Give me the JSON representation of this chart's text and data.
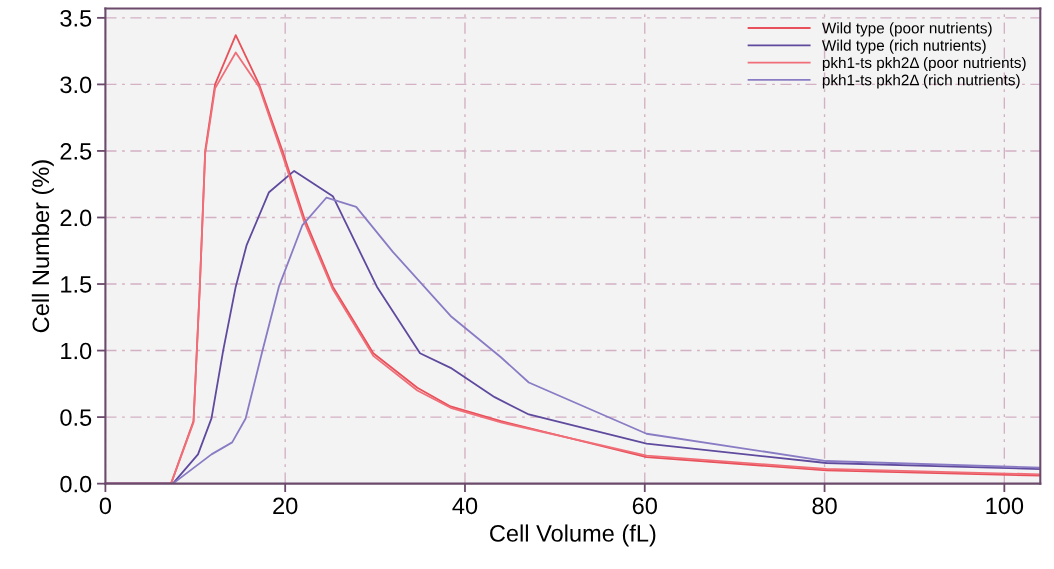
{
  "chart_data": {
    "type": "line",
    "xlabel": "Cell Volume (fL)",
    "ylabel": "Cell Number (%)",
    "xlim": [
      0,
      104
    ],
    "ylim": [
      0,
      3.57
    ],
    "xticks": [
      0,
      20,
      40,
      60,
      80,
      100
    ],
    "yticks": [
      {
        "value": 0,
        "label": "0.0"
      },
      0.5,
      {
        "value": 1,
        "label": "1.0"
      },
      1.5,
      {
        "value": 2,
        "label": "2.0"
      },
      2.5,
      {
        "value": 3,
        "label": "3.0"
      },
      3.5
    ],
    "grid": true,
    "legend": "top right",
    "marker": "none",
    "line_style": "solid",
    "series": [
      {
        "name": "Wild type (poor nutrients)",
        "color": "#e8505a",
        "x": [
          0,
          7.3,
          9.8,
          10.5,
          11.1,
          12.2,
          14.5,
          17.1,
          19.7,
          22.1,
          25.3,
          29.8,
          34.7,
          38.4,
          44,
          60.2,
          80.2,
          104
        ],
        "values": [
          0,
          0,
          0.47,
          1.48,
          2.5,
          3.0,
          3.37,
          3.0,
          2.5,
          2.0,
          1.48,
          0.98,
          0.72,
          0.58,
          0.47,
          0.2,
          0.1,
          0.06
        ]
      },
      {
        "name": "Wild type (rich nutrients)",
        "color": "#5f4a9e",
        "x": [
          0,
          7.5,
          10.3,
          11.8,
          13.1,
          14.5,
          15.7,
          18.2,
          21,
          25.3,
          30.2,
          35,
          38.4,
          43.3,
          47.1,
          60.2,
          80.2,
          104
        ],
        "values": [
          0,
          0,
          0.22,
          0.49,
          1.0,
          1.48,
          1.79,
          2.19,
          2.35,
          2.16,
          1.48,
          0.98,
          0.87,
          0.65,
          0.52,
          0.3,
          0.155,
          0.11
        ]
      },
      {
        "name": "pkh1-ts pkh2Δ (poor nutrients)",
        "color": "#f06e78",
        "x": [
          0,
          7.3,
          9.8,
          10.5,
          11.1,
          12.2,
          14.5,
          17.1,
          19.7,
          22.1,
          25.3,
          29.8,
          34.7,
          38.4,
          44,
          60.2,
          80.2,
          104
        ],
        "values": [
          0,
          0,
          0.46,
          1.47,
          2.48,
          2.97,
          3.24,
          2.98,
          2.47,
          1.97,
          1.46,
          0.96,
          0.7,
          0.57,
          0.46,
          0.21,
          0.11,
          0.07
        ]
      },
      {
        "name": "pkh1-ts pkh2Δ (rich nutrients)",
        "color": "#8a7cc4",
        "x": [
          0,
          7.5,
          11.8,
          14.1,
          15.6,
          17.4,
          19.3,
          21.9,
          24.6,
          27.9,
          32,
          38.4,
          44,
          47.1,
          60.2,
          80.2,
          104
        ],
        "values": [
          0,
          0,
          0.22,
          0.31,
          0.49,
          0.98,
          1.48,
          1.94,
          2.15,
          2.08,
          1.74,
          1.26,
          0.95,
          0.76,
          0.375,
          0.17,
          0.12
        ]
      }
    ]
  }
}
